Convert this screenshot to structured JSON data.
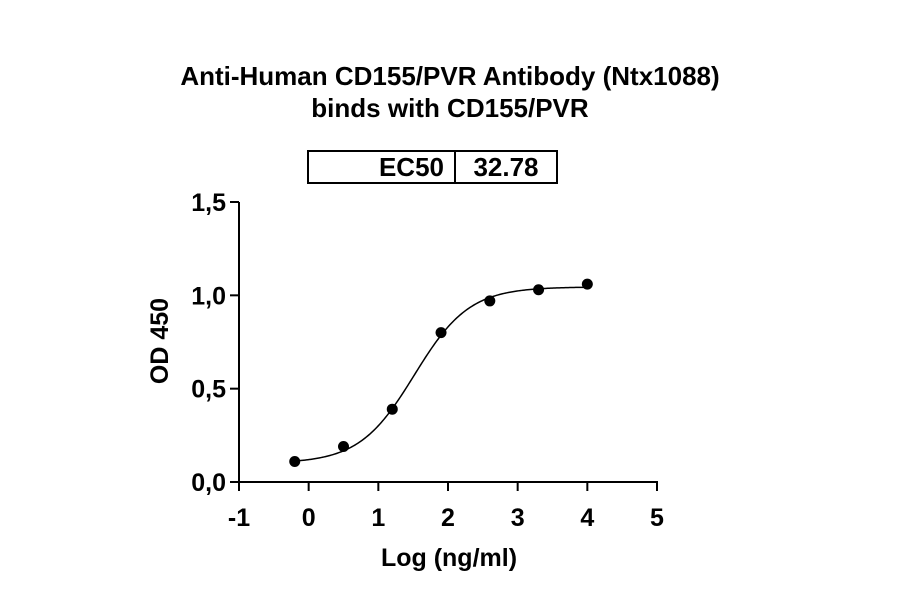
{
  "chart_data": {
    "type": "scatter",
    "title": "Anti-Human CD155/PVR Antibody (Ntx1088)",
    "subtitle": "binds with CD155/PVR",
    "xlabel": "Log (ng/ml)",
    "ylabel": "OD 450",
    "xlim": [
      -1,
      5
    ],
    "ylim": [
      0,
      1.5
    ],
    "x_ticks": [
      "-1",
      "0",
      "1",
      "2",
      "3",
      "4",
      "5"
    ],
    "y_ticks": [
      "0,0",
      "0,5",
      "1,0",
      "1,5"
    ],
    "points": [
      {
        "x": -0.2,
        "y": 0.11
      },
      {
        "x": 0.5,
        "y": 0.19
      },
      {
        "x": 1.2,
        "y": 0.39
      },
      {
        "x": 1.9,
        "y": 0.8
      },
      {
        "x": 2.6,
        "y": 0.97
      },
      {
        "x": 3.3,
        "y": 1.03
      },
      {
        "x": 4.0,
        "y": 1.06
      }
    ],
    "fit": {
      "bottom": 0.1,
      "top": 1.045,
      "log_ec50": 1.5156,
      "hill_slope": 1.1
    },
    "ec50_table": {
      "label": "EC50",
      "value": "32.78"
    },
    "grid": false,
    "legend": "none"
  }
}
